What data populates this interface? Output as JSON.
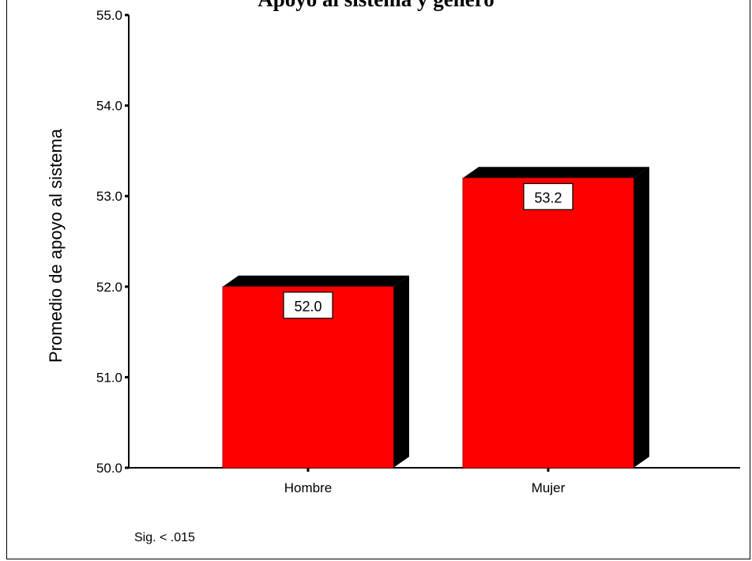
{
  "chart_data": {
    "type": "bar",
    "title": "Apoyo al sistema y género",
    "categories": [
      "Hombre",
      "Mujer"
    ],
    "values": [
      52.0,
      53.2
    ],
    "data_labels": [
      "52.0",
      "53.2"
    ],
    "ylabel": "Promedio de apoyo al sistema",
    "xlabel": "",
    "ylim": [
      50.0,
      55.0
    ],
    "yticks": [
      "50.0",
      "51.0",
      "52.0",
      "53.0",
      "54.0",
      "55.0"
    ],
    "bar_color": "#FF0000",
    "shadow_color": "#000000",
    "grid": false,
    "style": "3d-bar"
  },
  "note": "Sig. < .015"
}
